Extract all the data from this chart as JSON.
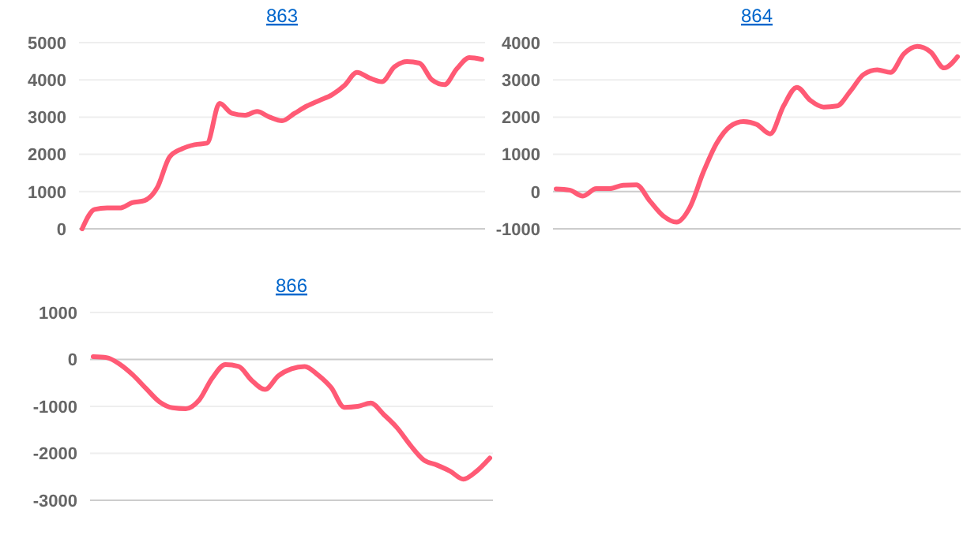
{
  "chart_data": [
    {
      "type": "line",
      "title": "863",
      "categories": [
        null,
        null,
        null,
        null,
        null,
        null,
        null,
        null,
        null,
        null,
        null,
        null,
        null,
        null,
        null,
        null,
        null,
        null,
        null,
        null,
        null,
        null,
        null,
        null,
        null,
        null,
        null,
        null,
        null,
        null,
        null,
        null,
        null
      ],
      "series": [
        {
          "color": "#ff5a75",
          "values": [
            0,
            520,
            560,
            560,
            700,
            760,
            1100,
            1930,
            2150,
            2260,
            2300,
            3370,
            3100,
            3050,
            3150,
            3000,
            2900,
            3100,
            3300,
            3450,
            3600,
            3850,
            4200,
            4050,
            3950,
            4350,
            4490,
            4450,
            4000,
            3870,
            4300,
            4600,
            4550
          ]
        }
      ],
      "ylim": [
        0,
        5000
      ],
      "yticks": [
        0,
        1000,
        2000,
        3000,
        4000,
        5000
      ],
      "grid": "y",
      "tick_labels": "y",
      "marker": "none"
    },
    {
      "type": "line",
      "title": "864",
      "categories": [
        null,
        null,
        null,
        null,
        null,
        null,
        null,
        null,
        null,
        null,
        null,
        null,
        null,
        null,
        null,
        null,
        null,
        null,
        null,
        null,
        null,
        null,
        null,
        null,
        null,
        null,
        null,
        null,
        null,
        null,
        null
      ],
      "series": [
        {
          "color": "#ff5a75",
          "values": [
            70,
            40,
            -120,
            80,
            80,
            170,
            180,
            -250,
            -650,
            -820,
            -420,
            520,
            1300,
            1750,
            1880,
            1800,
            1550,
            2300,
            2800,
            2450,
            2270,
            2300,
            2700,
            3150,
            3270,
            3200,
            3700,
            3900,
            3750,
            3320,
            3620
          ]
        }
      ],
      "ylim": [
        -1000,
        4000
      ],
      "yticks": [
        -1000,
        0,
        1000,
        2000,
        3000,
        4000
      ],
      "grid": "y",
      "tick_labels": "y",
      "marker": "none"
    },
    {
      "type": "line",
      "title": "866",
      "categories": [
        null,
        null,
        null,
        null,
        null,
        null,
        null,
        null,
        null,
        null,
        null,
        null,
        null,
        null,
        null,
        null,
        null,
        null,
        null,
        null,
        null,
        null,
        null,
        null,
        null,
        null,
        null,
        null,
        null,
        null,
        null
      ],
      "series": [
        {
          "color": "#ff5a75",
          "values": [
            60,
            40,
            -100,
            -330,
            -620,
            -900,
            -1030,
            -1050,
            -870,
            -400,
            -110,
            -150,
            -450,
            -640,
            -350,
            -200,
            -150,
            -330,
            -600,
            -1020,
            -1000,
            -930,
            -1180,
            -1460,
            -1830,
            -2140,
            -2250,
            -2380,
            -2550,
            -2380,
            -2100
          ]
        }
      ],
      "ylim": [
        -3000,
        1000
      ],
      "yticks": [
        -3000,
        -2000,
        -1000,
        0,
        1000
      ],
      "grid": "y",
      "tick_labels": "y",
      "marker": "none"
    }
  ]
}
